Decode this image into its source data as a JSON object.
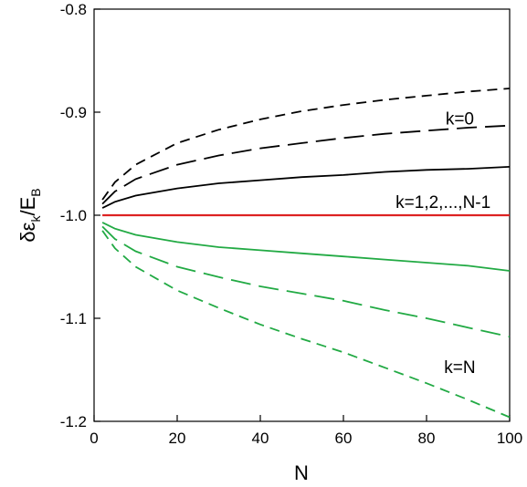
{
  "chart_data": {
    "type": "line",
    "xlabel": "N",
    "ylabel": {
      "base": "δε",
      "sub": "k",
      "mid": "/E",
      "sub2": "B"
    },
    "xlim": [
      0,
      100
    ],
    "ylim": [
      -1.2,
      -0.8
    ],
    "xticks": [
      "0",
      "20",
      "40",
      "60",
      "80",
      "100"
    ],
    "yticks": [
      "-0.8",
      "-0.9",
      "-1.0",
      "-1.1",
      "-1.2"
    ],
    "grid": false,
    "annotations": [
      {
        "text": "k=0",
        "x": 88,
        "y": -0.912
      },
      {
        "text": "k=1,2,...,N-1",
        "x": 84,
        "y": -0.993
      },
      {
        "text": "k=N",
        "x": 88,
        "y": -1.153
      }
    ],
    "series": [
      {
        "style": "short-dash",
        "color": "#000000",
        "x": [
          2,
          5,
          10,
          20,
          30,
          40,
          50,
          60,
          70,
          80,
          90,
          100
        ],
        "y": [
          -0.985,
          -0.968,
          -0.951,
          -0.93,
          -0.917,
          -0.907,
          -0.899,
          -0.893,
          -0.888,
          -0.884,
          -0.88,
          -0.877
        ]
      },
      {
        "style": "long-dash",
        "color": "#000000",
        "x": [
          2,
          5,
          10,
          20,
          30,
          40,
          50,
          60,
          70,
          80,
          90,
          100
        ],
        "y": [
          -0.989,
          -0.977,
          -0.965,
          -0.951,
          -0.942,
          -0.935,
          -0.93,
          -0.925,
          -0.921,
          -0.918,
          -0.915,
          -0.913
        ]
      },
      {
        "style": "solid",
        "color": "#000000",
        "x": [
          2,
          5,
          10,
          20,
          30,
          40,
          50,
          60,
          70,
          80,
          90,
          100
        ],
        "y": [
          -0.993,
          -0.987,
          -0.981,
          -0.974,
          -0.969,
          -0.966,
          -0.963,
          -0.961,
          -0.958,
          -0.956,
          -0.955,
          -0.953
        ]
      },
      {
        "style": "solid",
        "color": "#dd2222",
        "x": [
          2,
          100
        ],
        "y": [
          -1.0,
          -1.0
        ]
      },
      {
        "style": "solid",
        "color": "#22aa44",
        "x": [
          2,
          5,
          10,
          20,
          30,
          40,
          50,
          60,
          70,
          80,
          90,
          100
        ],
        "y": [
          -1.007,
          -1.013,
          -1.019,
          -1.026,
          -1.031,
          -1.034,
          -1.037,
          -1.04,
          -1.043,
          -1.046,
          -1.049,
          -1.054
        ]
      },
      {
        "style": "long-dash",
        "color": "#22aa44",
        "x": [
          2,
          5,
          10,
          20,
          30,
          40,
          50,
          60,
          70,
          80,
          90,
          100
        ],
        "y": [
          -1.011,
          -1.023,
          -1.035,
          -1.05,
          -1.06,
          -1.069,
          -1.076,
          -1.083,
          -1.092,
          -1.1,
          -1.109,
          -1.118
        ]
      },
      {
        "style": "short-dash",
        "color": "#22aa44",
        "x": [
          2,
          5,
          10,
          20,
          30,
          40,
          50,
          60,
          70,
          80,
          90,
          100
        ],
        "y": [
          -1.015,
          -1.032,
          -1.05,
          -1.073,
          -1.09,
          -1.106,
          -1.12,
          -1.133,
          -1.148,
          -1.163,
          -1.179,
          -1.196
        ]
      }
    ]
  }
}
